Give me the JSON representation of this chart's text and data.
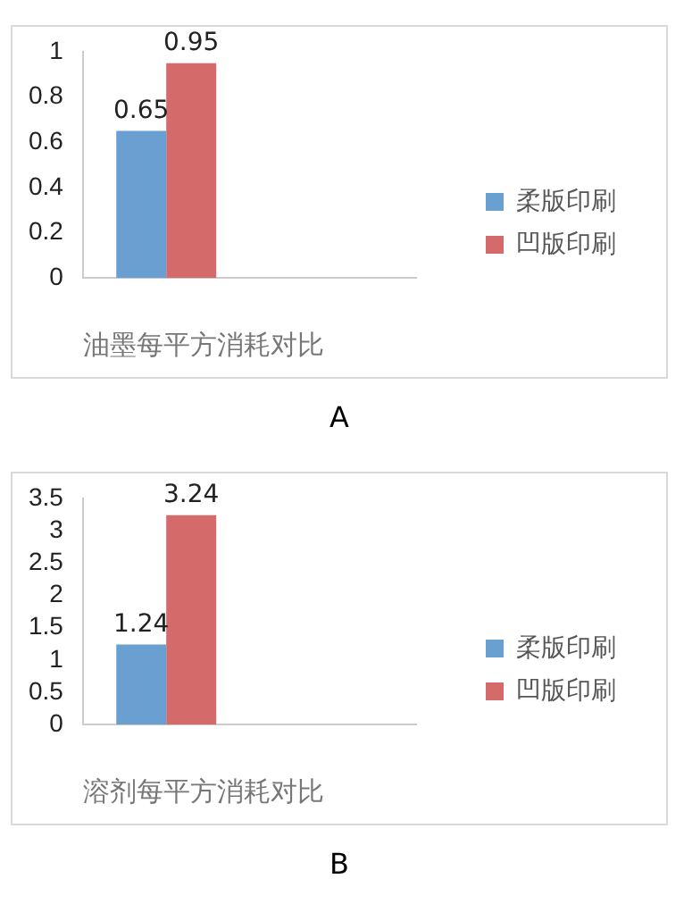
{
  "chart_data": [
    {
      "type": "bar",
      "xlabel": "油墨每平方消耗对比",
      "categories": [
        null,
        null
      ],
      "series": [
        {
          "name": "柔版印刷",
          "color": "#6a9fd2",
          "values": [
            0.65,
            null
          ]
        },
        {
          "name": "凹版印刷",
          "color": "#d46a6a",
          "values": [
            0.95,
            null
          ]
        }
      ],
      "ylim": [
        0,
        1
      ],
      "yticks": [
        0,
        0.2,
        0.4,
        0.6,
        0.8,
        1
      ],
      "data_labels": true,
      "legend": "right",
      "grid": false,
      "annotations": [
        "A"
      ]
    },
    {
      "type": "bar",
      "xlabel": "溶剂每平方消耗对比",
      "categories": [
        null,
        null
      ],
      "series": [
        {
          "name": "柔版印刷",
          "color": "#6a9fd2",
          "values": [
            1.24,
            null
          ]
        },
        {
          "name": "凹版印刷",
          "color": "#d46a6a",
          "values": [
            3.24,
            null
          ]
        }
      ],
      "ylim": [
        0,
        3.5
      ],
      "yticks": [
        0,
        0.5,
        1,
        1.5,
        2,
        2.5,
        3,
        3.5
      ],
      "data_labels": true,
      "legend": "right",
      "grid": false,
      "annotations": [
        "B"
      ]
    }
  ]
}
